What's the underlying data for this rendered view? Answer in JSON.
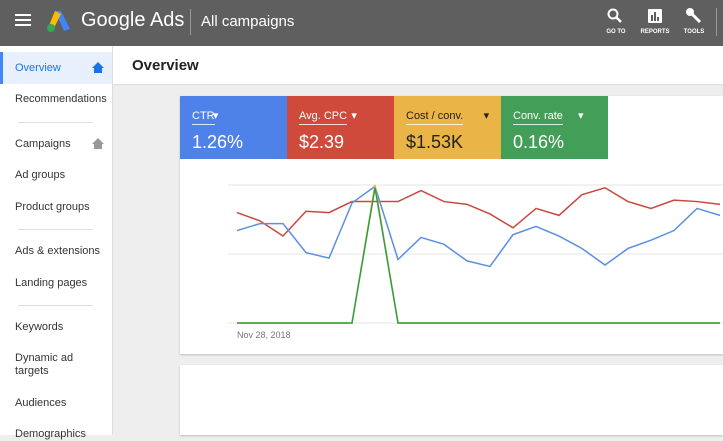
{
  "header": {
    "brand": "Google Ads",
    "title": "All campaigns",
    "actions": [
      "GO TO",
      "REPORTS",
      "TOOLS"
    ]
  },
  "nav": [
    "Overview",
    "Recommendations",
    "Campaigns",
    "Ad groups",
    "Product groups",
    "Ads & extensions",
    "Landing pages",
    "Keywords",
    "Dynamic ad targets",
    "Audiences",
    "Demographics"
  ],
  "page_title": "Overview",
  "tiles": [
    {
      "label": "CTR",
      "value": "1.26%"
    },
    {
      "label": "Avg. CPC",
      "value": "$2.39"
    },
    {
      "label": "Cost / conv.",
      "value": "$1.53K"
    },
    {
      "label": "Conv. rate",
      "value": "0.16%"
    }
  ],
  "chart_data": {
    "type": "line",
    "categories": [
      "Nov 28, 2018",
      null,
      null,
      null,
      null,
      null,
      null,
      null,
      null,
      null,
      null,
      null,
      null,
      null,
      null,
      null,
      null,
      null,
      null,
      null,
      null,
      null
    ],
    "ylim": [
      0,
      100
    ],
    "series": [
      {
        "name": "CTR",
        "color": "#5b8fe0",
        "values": [
          67,
          72,
          72,
          51,
          47,
          87,
          99,
          46,
          62,
          57,
          45,
          41,
          64,
          70,
          63,
          54,
          42,
          54,
          60,
          67,
          83,
          78
        ]
      },
      {
        "name": "Avg. CPC",
        "color": "#c9483e",
        "values": [
          80,
          74,
          63,
          81,
          80,
          88,
          88,
          88,
          96,
          88,
          86,
          79,
          69,
          83,
          78,
          93,
          98,
          88,
          83,
          89,
          88,
          86
        ]
      },
      {
        "name": "Cost / conv.",
        "color": "#f0b43c",
        "values": [
          0,
          0,
          0,
          0,
          0,
          0,
          100,
          0,
          0,
          0,
          0,
          0,
          0,
          0,
          0,
          0,
          0,
          0,
          0,
          0,
          0,
          0
        ]
      },
      {
        "name": "Conv. rate",
        "color": "#2e9e45",
        "values": [
          0,
          0,
          0,
          0,
          0,
          0,
          98,
          0,
          0,
          0,
          0,
          0,
          0,
          0,
          0,
          0,
          0,
          0,
          0,
          0,
          0,
          0
        ]
      }
    ]
  }
}
